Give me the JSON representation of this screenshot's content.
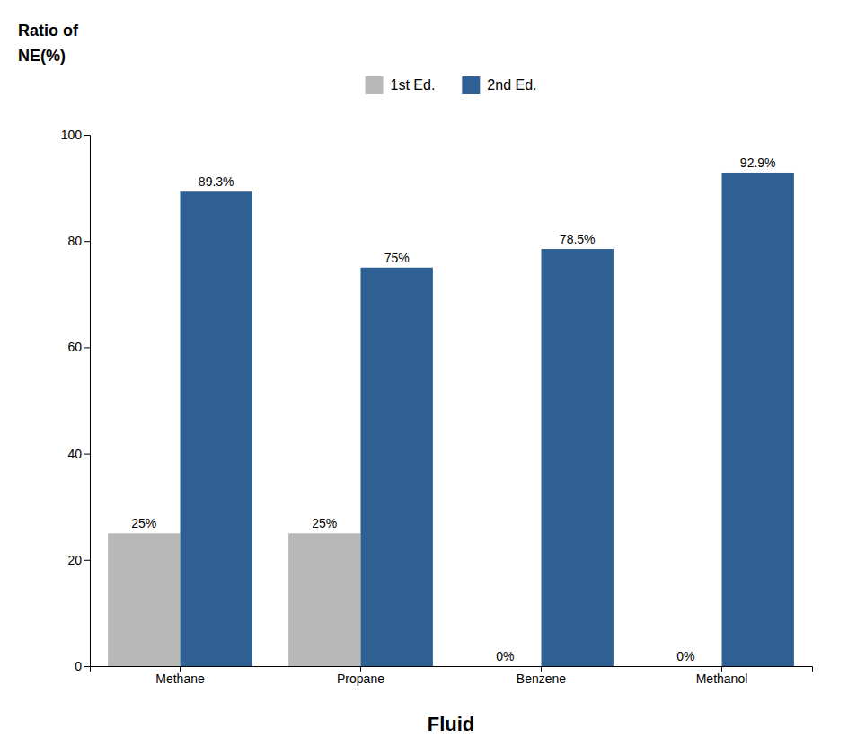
{
  "chart_data": {
    "type": "bar",
    "categories": [
      "Methane",
      "Propane",
      "Benzene",
      "Methanol"
    ],
    "series": [
      {
        "name": "1st Ed.",
        "color": "#b8b8b8",
        "values": [
          25,
          25,
          0,
          0
        ],
        "value_labels": [
          "25%",
          "25%",
          "0%",
          "0%"
        ]
      },
      {
        "name": "2nd Ed.",
        "color": "#2e6094",
        "values": [
          89.3,
          75,
          78.5,
          92.9
        ],
        "value_labels": [
          "89.3%",
          "75%",
          "78.5%",
          "92.9%"
        ]
      }
    ],
    "xlabel": "Fluid",
    "ylabel": [
      "Ratio of",
      "NE(%)"
    ],
    "ylim": [
      0,
      100
    ],
    "yticks": [
      0,
      20,
      40,
      60,
      80,
      100
    ],
    "grid": false,
    "legend": "top",
    "data_labels": true
  }
}
